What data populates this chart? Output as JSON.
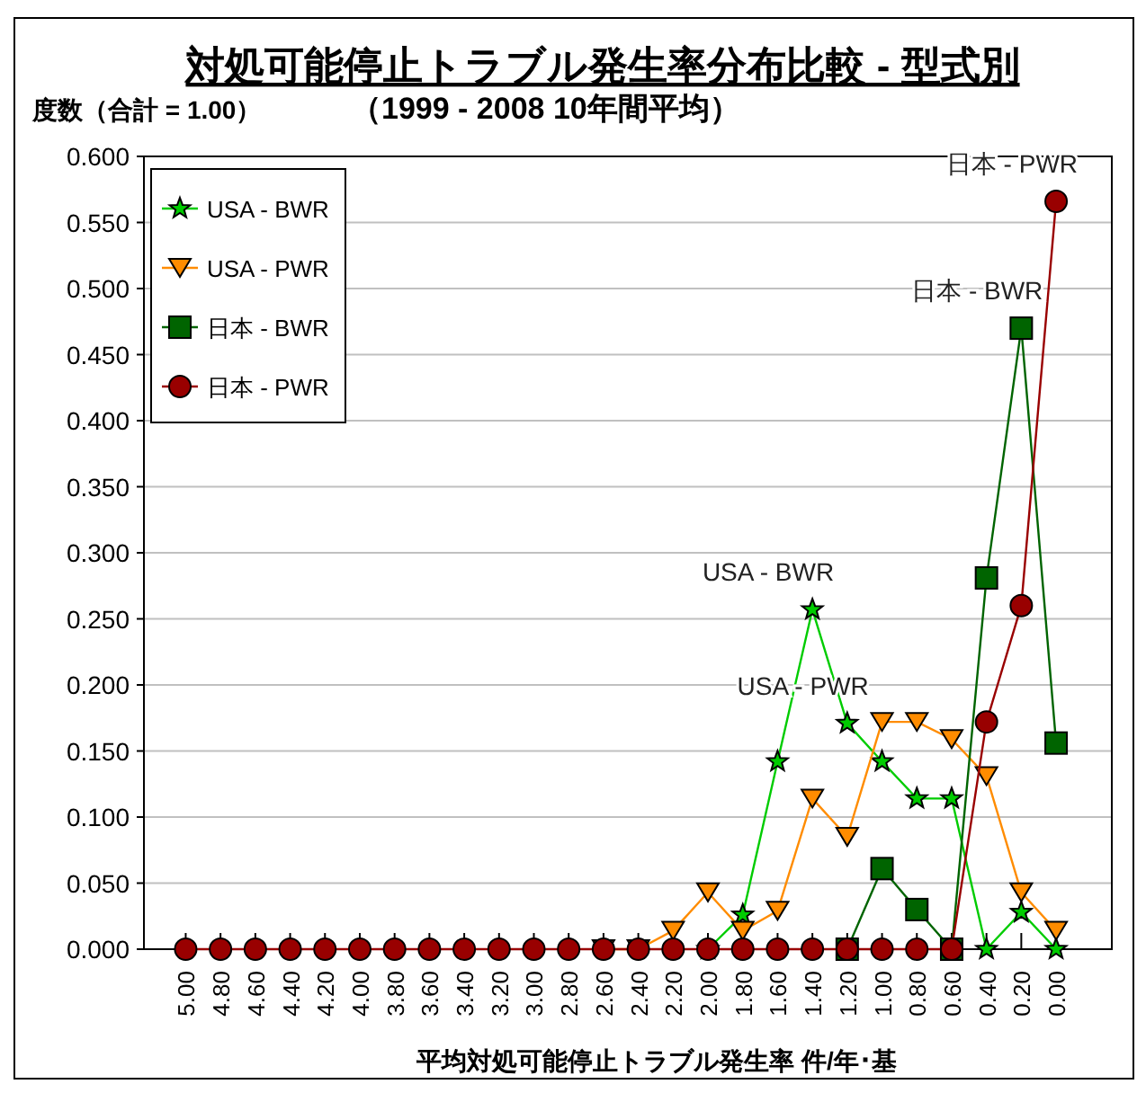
{
  "chart_data": {
    "type": "line",
    "title": "対処可能停止トラブル発生率分布比較 - 型式別",
    "ylabel": "度数（合計 = 1.00）",
    "subtitle": "（1999 - 2008 10年間平均）",
    "xlabel": "平均対処可能停止トラブル発生率 件/年･基",
    "categories": [
      "5.00",
      "4.80",
      "4.60",
      "4.40",
      "4.20",
      "4.00",
      "3.80",
      "3.60",
      "3.40",
      "3.20",
      "3.00",
      "2.80",
      "2.60",
      "2.40",
      "2.20",
      "2.00",
      "1.80",
      "1.60",
      "1.40",
      "1.20",
      "1.00",
      "0.80",
      "0.60",
      "0.40",
      "0.20",
      "0.00"
    ],
    "series": [
      {
        "name": "USA - BWR",
        "color": "#00cc00",
        "marker": "star",
        "values": [
          null,
          null,
          null,
          null,
          null,
          null,
          null,
          null,
          null,
          null,
          null,
          null,
          null,
          null,
          null,
          0,
          0.026,
          0.142,
          0.257,
          0.171,
          0.142,
          0.114,
          0.114,
          0,
          0.028,
          0
        ]
      },
      {
        "name": "USA - PWR",
        "color": "#ff8c00",
        "marker": "triangle",
        "values": [
          null,
          null,
          null,
          null,
          null,
          null,
          null,
          null,
          null,
          null,
          null,
          null,
          0,
          0,
          0.014,
          0.043,
          0.014,
          0.029,
          0.114,
          0.085,
          0.172,
          0.172,
          0.159,
          0.131,
          0.043,
          0.014
        ]
      },
      {
        "name": "日本 - BWR",
        "color": "#006400",
        "marker": "square",
        "values": [
          null,
          null,
          null,
          null,
          null,
          null,
          null,
          null,
          null,
          null,
          null,
          null,
          null,
          null,
          null,
          null,
          null,
          null,
          null,
          0,
          0.061,
          0.03,
          0,
          0.281,
          0.47,
          0.156
        ]
      },
      {
        "name": "日本 - PWR",
        "color": "#990000",
        "marker": "circle",
        "values": [
          0,
          0,
          0,
          0,
          0,
          0,
          0,
          0,
          0,
          0,
          0,
          0,
          0,
          0,
          0,
          0,
          0,
          0,
          0,
          0,
          0,
          0,
          0,
          0.172,
          0.26,
          0.566
        ]
      }
    ],
    "annotations": [
      {
        "text": "USA - BWR",
        "x": "1.40",
        "y": 0.257
      },
      {
        "text": "USA - PWR",
        "x": "1.20",
        "y": 0.171
      },
      {
        "text": "日本 - BWR",
        "x": "0.20",
        "y": 0.47
      },
      {
        "text": "日本 - PWR",
        "x": "0.00",
        "y": 0.566
      }
    ],
    "ylim": [
      0,
      0.6
    ],
    "yticks": [
      {
        "value": 0,
        "label": "0.000"
      },
      {
        "value": 0.05,
        "label": "0.050"
      },
      {
        "value": 0.1,
        "label": "0.100"
      },
      {
        "value": 0.15,
        "label": "0.150"
      },
      {
        "value": 0.2,
        "label": "0.200"
      },
      {
        "value": 0.25,
        "label": "0.250"
      },
      {
        "value": 0.3,
        "label": "0.300"
      },
      {
        "value": 0.35,
        "label": "0.350"
      },
      {
        "value": 0.4,
        "label": "0.400"
      },
      {
        "value": 0.45,
        "label": "0.450"
      },
      {
        "value": 0.5,
        "label": "0.500"
      },
      {
        "value": 0.55,
        "label": "0.550"
      },
      {
        "value": 0.6,
        "label": "0.600"
      }
    ],
    "grid": "y",
    "legend": "top left"
  }
}
